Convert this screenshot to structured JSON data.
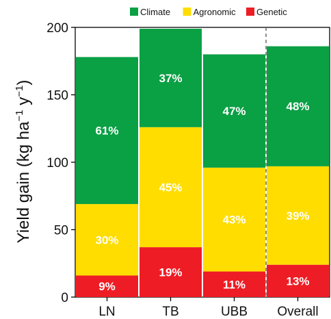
{
  "chart_data": {
    "type": "bar",
    "stacked": true,
    "categories": [
      "LN",
      "TB",
      "UBB",
      "Overall"
    ],
    "series": [
      {
        "name": "Genetic",
        "color": "#ee1c25",
        "values": [
          16,
          37,
          19,
          24
        ],
        "labels": [
          "9%",
          "19%",
          "11%",
          "13%"
        ]
      },
      {
        "name": "Agronomic",
        "color": "#ffdd00",
        "values": [
          53,
          89,
          77,
          73
        ],
        "labels": [
          "30%",
          "45%",
          "43%",
          "39%"
        ]
      },
      {
        "name": "Climate",
        "color": "#0aa044",
        "values": [
          109,
          73,
          84,
          89
        ],
        "labels": [
          "61%",
          "37%",
          "47%",
          "48%"
        ]
      }
    ],
    "legend_order": [
      "Climate",
      "Agronomic",
      "Genetic"
    ],
    "legend_position": "top-right",
    "ylim": [
      0,
      200
    ],
    "yticks": [
      "0",
      "50",
      "100",
      "150",
      "200"
    ],
    "ylabel": {
      "main": "Yield gain (kg ha",
      "sup1": "−1",
      "mid": " y",
      "sup2": "−1",
      "end": ")"
    },
    "separator_before": "Overall",
    "grid": false
  }
}
